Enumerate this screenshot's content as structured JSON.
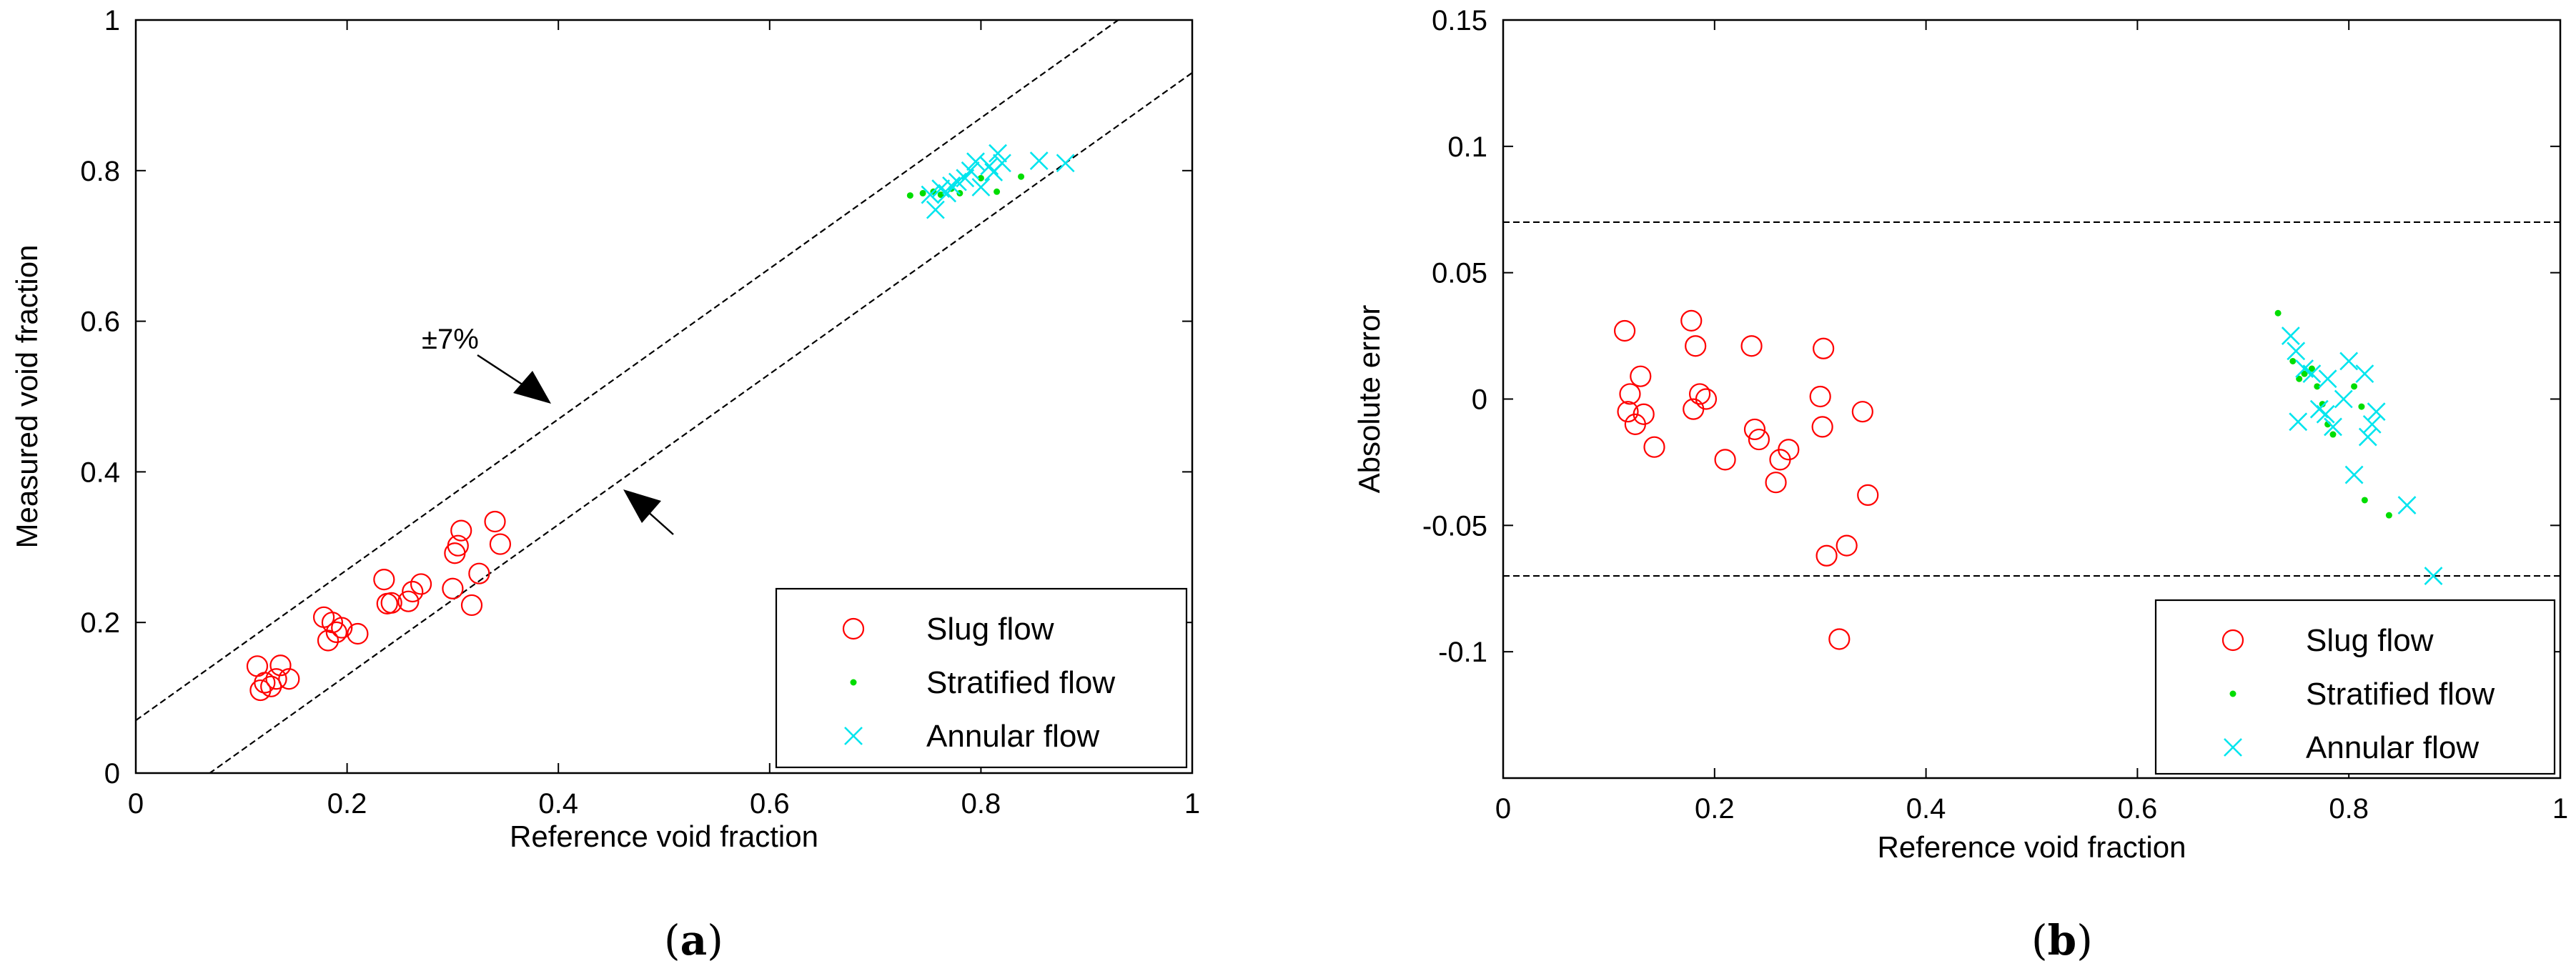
{
  "chart_data": [
    {
      "id": "a",
      "type": "scatter",
      "panel_label_open": "(",
      "panel_label_letter": "a",
      "panel_label_close": ")",
      "xlabel": "Reference void fraction",
      "ylabel": "Measured void fraction",
      "xlim": [
        0,
        1
      ],
      "ylim": [
        0,
        1
      ],
      "xticks": [
        "0",
        "0.2",
        "0.4",
        "0.6",
        "0.8",
        "1"
      ],
      "xtick_values": [
        0,
        0.2,
        0.4,
        0.6,
        0.8,
        1
      ],
      "yticks": [
        "0",
        "0.2",
        "0.4",
        "0.6",
        "0.8",
        "1"
      ],
      "ytick_values": [
        0,
        0.2,
        0.4,
        0.6,
        0.8,
        1
      ],
      "annotation": "±7%",
      "reference_lines": [
        {
          "name": "upper-bound",
          "intercept": 0.07,
          "slope": 1
        },
        {
          "name": "lower-bound",
          "intercept": -0.07,
          "slope": 1
        }
      ],
      "legend_position": "bottom-right",
      "series": [
        {
          "name": "Slug flow",
          "marker": "circle",
          "color": "#ff0000",
          "points": [
            [
              0.115,
              0.142
            ],
            [
              0.118,
              0.11
            ],
            [
              0.122,
              0.12
            ],
            [
              0.128,
              0.115
            ],
            [
              0.133,
              0.125
            ],
            [
              0.137,
              0.143
            ],
            [
              0.145,
              0.125
            ],
            [
              0.178,
              0.207
            ],
            [
              0.182,
              0.176
            ],
            [
              0.186,
              0.2
            ],
            [
              0.19,
              0.187
            ],
            [
              0.195,
              0.193
            ],
            [
              0.21,
              0.185
            ],
            [
              0.235,
              0.257
            ],
            [
              0.238,
              0.225
            ],
            [
              0.242,
              0.226
            ],
            [
              0.258,
              0.228
            ],
            [
              0.262,
              0.241
            ],
            [
              0.27,
              0.251
            ],
            [
              0.3,
              0.245
            ],
            [
              0.302,
              0.292
            ],
            [
              0.305,
              0.302
            ],
            [
              0.308,
              0.322
            ],
            [
              0.318,
              0.223
            ],
            [
              0.325,
              0.265
            ],
            [
              0.34,
              0.334
            ],
            [
              0.345,
              0.304
            ]
          ]
        },
        {
          "name": "Stratified flow",
          "marker": "dot",
          "color": "#00dd00",
          "points": [
            [
              0.733,
              0.767
            ],
            [
              0.745,
              0.77
            ],
            [
              0.755,
              0.772
            ],
            [
              0.762,
              0.768
            ],
            [
              0.772,
              0.776
            ],
            [
              0.78,
              0.77
            ],
            [
              0.8,
              0.79
            ],
            [
              0.815,
              0.772
            ],
            [
              0.838,
              0.792
            ]
          ]
        },
        {
          "name": "Annular flow",
          "marker": "x",
          "color": "#00e5ee",
          "points": [
            [
              0.752,
              0.768
            ],
            [
              0.757,
              0.748
            ],
            [
              0.762,
              0.776
            ],
            [
              0.768,
              0.77
            ],
            [
              0.772,
              0.78
            ],
            [
              0.778,
              0.785
            ],
            [
              0.785,
              0.79
            ],
            [
              0.79,
              0.8
            ],
            [
              0.795,
              0.812
            ],
            [
              0.8,
              0.778
            ],
            [
              0.808,
              0.806
            ],
            [
              0.812,
              0.798
            ],
            [
              0.816,
              0.823
            ],
            [
              0.82,
              0.81
            ],
            [
              0.855,
              0.813
            ],
            [
              0.88,
              0.81
            ]
          ]
        }
      ]
    },
    {
      "id": "b",
      "type": "scatter",
      "panel_label_open": "(",
      "panel_label_letter": "b",
      "panel_label_close": ")",
      "xlabel": "Reference void fraction",
      "ylabel": "Absolute error",
      "xlim": [
        0,
        1
      ],
      "ylim": [
        -0.15,
        0.15
      ],
      "xticks": [
        "0",
        "0.2",
        "0.4",
        "0.6",
        "0.8",
        "1"
      ],
      "xtick_values": [
        0,
        0.2,
        0.4,
        0.6,
        0.8,
        1
      ],
      "yticks": [
        "-0.1",
        "-0.05",
        "0",
        "0.05",
        "0.1",
        "0.15"
      ],
      "ytick_values": [
        -0.1,
        -0.05,
        0,
        0.05,
        0.1,
        0.15
      ],
      "reference_lines": [
        {
          "name": "upper-bound",
          "y": 0.07
        },
        {
          "name": "lower-bound",
          "y": -0.07
        }
      ],
      "legend_position": "bottom-right",
      "series": [
        {
          "name": "Slug flow",
          "marker": "circle",
          "color": "#ff0000",
          "points": [
            [
              0.115,
              0.027
            ],
            [
              0.118,
              -0.005
            ],
            [
              0.12,
              0.002
            ],
            [
              0.125,
              -0.01
            ],
            [
              0.13,
              0.009
            ],
            [
              0.133,
              -0.006
            ],
            [
              0.143,
              -0.019
            ],
            [
              0.178,
              0.031
            ],
            [
              0.18,
              -0.004
            ],
            [
              0.182,
              0.021
            ],
            [
              0.186,
              0.002
            ],
            [
              0.192,
              0.0
            ],
            [
              0.21,
              -0.024
            ],
            [
              0.235,
              0.021
            ],
            [
              0.238,
              -0.012
            ],
            [
              0.242,
              -0.016
            ],
            [
              0.258,
              -0.033
            ],
            [
              0.262,
              -0.024
            ],
            [
              0.27,
              -0.02
            ],
            [
              0.3,
              0.001
            ],
            [
              0.302,
              -0.011
            ],
            [
              0.303,
              0.02
            ],
            [
              0.306,
              -0.062
            ],
            [
              0.318,
              -0.095
            ],
            [
              0.325,
              -0.058
            ],
            [
              0.34,
              -0.005
            ],
            [
              0.345,
              -0.038
            ]
          ]
        },
        {
          "name": "Stratified flow",
          "marker": "dot",
          "color": "#00dd00",
          "points": [
            [
              0.733,
              0.034
            ],
            [
              0.747,
              0.015
            ],
            [
              0.753,
              0.008
            ],
            [
              0.758,
              0.01
            ],
            [
              0.765,
              0.012
            ],
            [
              0.77,
              0.005
            ],
            [
              0.775,
              -0.002
            ],
            [
              0.78,
              -0.01
            ],
            [
              0.785,
              -0.014
            ],
            [
              0.805,
              0.005
            ],
            [
              0.812,
              -0.003
            ],
            [
              0.815,
              -0.04
            ],
            [
              0.838,
              -0.046
            ]
          ]
        },
        {
          "name": "Annular flow",
          "marker": "x",
          "color": "#00e5ee",
          "points": [
            [
              0.745,
              0.025
            ],
            [
              0.75,
              0.019
            ],
            [
              0.752,
              -0.009
            ],
            [
              0.758,
              0.012
            ],
            [
              0.765,
              0.01
            ],
            [
              0.772,
              -0.004
            ],
            [
              0.778,
              -0.006
            ],
            [
              0.78,
              0.008
            ],
            [
              0.785,
              -0.011
            ],
            [
              0.795,
              0.0
            ],
            [
              0.8,
              0.015
            ],
            [
              0.805,
              -0.03
            ],
            [
              0.815,
              0.01
            ],
            [
              0.818,
              -0.015
            ],
            [
              0.822,
              -0.01
            ],
            [
              0.826,
              -0.005
            ],
            [
              0.855,
              -0.042
            ],
            [
              0.88,
              -0.07
            ]
          ]
        }
      ]
    }
  ]
}
